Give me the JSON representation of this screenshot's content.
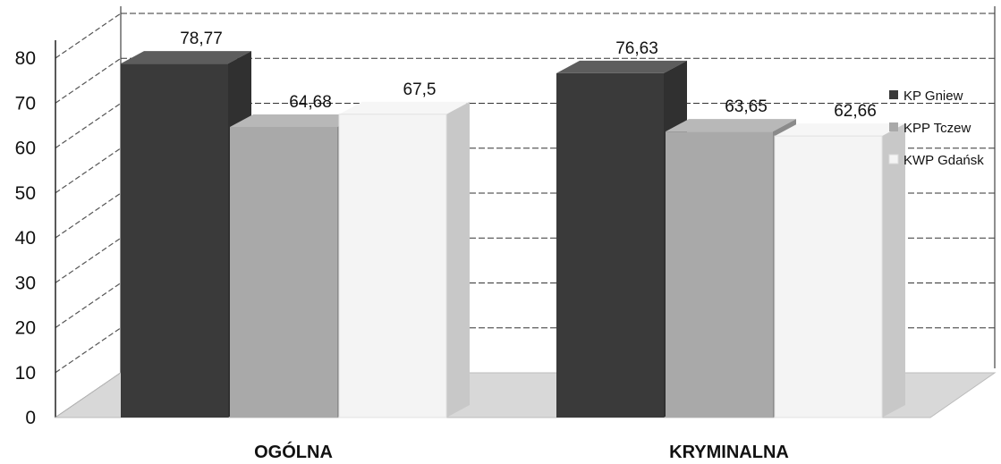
{
  "chart_data": {
    "type": "bar",
    "categories": [
      "OGÓLNA",
      "KRYMINALNA"
    ],
    "series": [
      {
        "name": "KP Gniew",
        "values": [
          78.77,
          76.63
        ],
        "labels": [
          "78,77",
          "76,63"
        ],
        "color": "#3a3a3a"
      },
      {
        "name": "KPP Tczew",
        "values": [
          64.68,
          63.65
        ],
        "labels": [
          "64,68",
          "63,65"
        ],
        "color": "#a9a9a9"
      },
      {
        "name": "KWP Gdańsk",
        "values": [
          67.5,
          62.66
        ],
        "labels": [
          "67,5",
          "62,66"
        ],
        "color": "#f4f4f4"
      }
    ],
    "y_ticks": [
      "0",
      "10",
      "20",
      "30",
      "40",
      "50",
      "60",
      "70",
      "80"
    ],
    "ylim": [
      0,
      80
    ],
    "grid": true,
    "legend_position": "right",
    "style": "3d"
  }
}
